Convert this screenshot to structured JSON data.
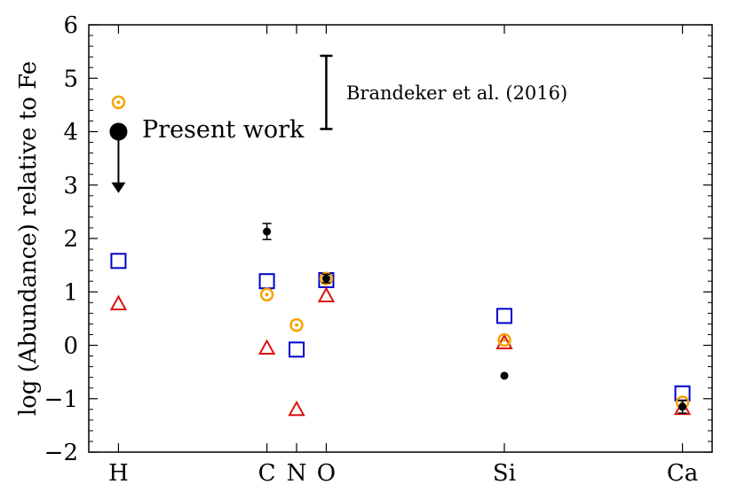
{
  "chart_data": {
    "type": "scatter",
    "title": "",
    "xlabel": "",
    "ylabel": "log (Abundance) relative to Fe",
    "categories": [
      "H",
      "C",
      "N",
      "O",
      "Si",
      "Ca"
    ],
    "category_positions": [
      1,
      6,
      7,
      8,
      14,
      20
    ],
    "xlim": [
      0,
      21
    ],
    "ylim": [
      -2,
      6
    ],
    "yticks": [
      -2,
      -1,
      0,
      1,
      2,
      3,
      4,
      5,
      6
    ],
    "grid": false,
    "series": [
      {
        "name": "Present work",
        "marker": "filled-circle",
        "color": "#000000",
        "points": [
          {
            "x": "C",
            "y": 2.13,
            "yerr": 0.15
          },
          {
            "x": "O",
            "y": 1.25,
            "yerr": 0.08
          },
          {
            "x": "Si",
            "y": -0.57
          },
          {
            "x": "Ca",
            "y": -1.15,
            "yerr": 0.12
          }
        ],
        "upper_limits": [
          {
            "x": "H",
            "y": 4.0,
            "to": 2.85
          }
        ]
      },
      {
        "marker": "circled-dot",
        "color": "#f5a300",
        "points": [
          {
            "x": "H",
            "y": 4.55
          },
          {
            "x": "C",
            "y": 0.95
          },
          {
            "x": "N",
            "y": 0.38
          },
          {
            "x": "O",
            "y": 1.25
          },
          {
            "x": "Si",
            "y": 0.1
          },
          {
            "x": "Ca",
            "y": -1.07
          }
        ]
      },
      {
        "marker": "open-square",
        "color": "#0000cc",
        "points": [
          {
            "x": "H",
            "y": 1.58
          },
          {
            "x": "C",
            "y": 1.2
          },
          {
            "x": "N",
            "y": -0.08
          },
          {
            "x": "O",
            "y": 1.22
          },
          {
            "x": "Si",
            "y": 0.55
          },
          {
            "x": "Ca",
            "y": -0.9
          }
        ]
      },
      {
        "marker": "open-triangle",
        "color": "#dd1111",
        "points": [
          {
            "x": "H",
            "y": 0.78
          },
          {
            "x": "C",
            "y": -0.05
          },
          {
            "x": "N",
            "y": -1.2
          },
          {
            "x": "O",
            "y": 0.93
          },
          {
            "x": "Si",
            "y": 0.05
          },
          {
            "x": "Ca",
            "y": -1.18
          }
        ]
      }
    ],
    "annotations": {
      "legend_label": "Present work",
      "reference_label": "Brandeker et al. (2016)",
      "reference_errorbar": {
        "x": 8,
        "y_low": 4.05,
        "y_high": 5.42
      }
    }
  }
}
